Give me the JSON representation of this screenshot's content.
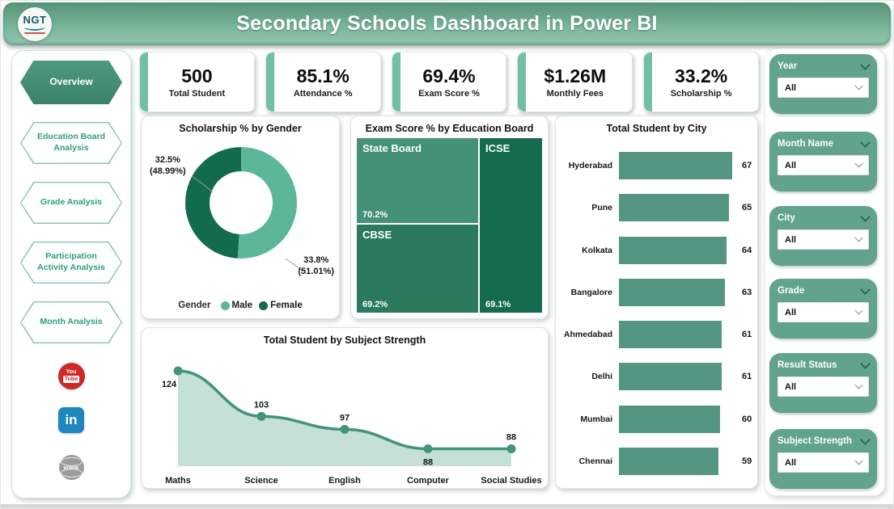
{
  "header": {
    "logo_text": "NGT",
    "title": "Secondary Schools Dashboard in Power BI"
  },
  "sidebar": {
    "items": [
      {
        "label": "Overview",
        "active": true
      },
      {
        "label": "Education Board Analysis",
        "active": false
      },
      {
        "label": "Grade Analysis",
        "active": false
      },
      {
        "label": "Participation Activity Analysis",
        "active": false
      },
      {
        "label": "Month Analysis",
        "active": false
      }
    ],
    "social": [
      {
        "name": "youtube",
        "line1": "You",
        "line2": "Tube",
        "color": "#CD2A26"
      },
      {
        "name": "linkedin",
        "label": "in",
        "color": "#1F86C0"
      },
      {
        "name": "website",
        "label": "www",
        "color": "#9B9B9B"
      }
    ]
  },
  "kpis": [
    {
      "value": "500",
      "label": "Total Student"
    },
    {
      "value": "85.1%",
      "label": "Attendance %"
    },
    {
      "value": "69.4%",
      "label": "Exam Score %"
    },
    {
      "value": "$1.26M",
      "label": "Monthly Fees"
    },
    {
      "value": "33.2%",
      "label": "Scholarship %"
    }
  ],
  "filters": [
    {
      "title": "Year",
      "value": "All"
    },
    {
      "title": "Month Name",
      "value": "All"
    },
    {
      "title": "City",
      "value": "All"
    },
    {
      "title": "Grade",
      "value": "All"
    },
    {
      "title": "Result Status",
      "value": "All"
    },
    {
      "title": "Subject Strength",
      "value": "All"
    }
  ],
  "chart_data": [
    {
      "type": "pie",
      "subtype": "donut",
      "title": "Scholarship % by Gender",
      "legend_title": "Gender",
      "legend_position": "bottom",
      "series": [
        {
          "name": "Male",
          "value_label": "33.8%",
          "share_label": "(51.01%)",
          "share_pct": 51.01,
          "color": "#5BB796"
        },
        {
          "name": "Female",
          "value_label": "32.5%",
          "share_label": "(48.99%)",
          "share_pct": 48.99,
          "color": "#126C4C"
        }
      ]
    },
    {
      "type": "heatmap",
      "subtype": "treemap",
      "title": "Exam Score % by Education Board",
      "cells": [
        {
          "name": "State Board",
          "value": "70.2%",
          "color": "#449177"
        },
        {
          "name": "CBSE",
          "value": "69.2%",
          "color": "#2A7A5B"
        },
        {
          "name": "ICSE",
          "value": "69.1%",
          "color": "#156C4D"
        }
      ]
    },
    {
      "type": "bar",
      "orientation": "horizontal",
      "title": "Total Student by City",
      "categories": [
        "Hyderabad",
        "Pune",
        "Kolkata",
        "Bangalore",
        "Ahmedabad",
        "Delhi",
        "Mumbai",
        "Chennai"
      ],
      "values": [
        67,
        65,
        64,
        63,
        61,
        61,
        60,
        59
      ],
      "xlim": [
        0,
        70
      ],
      "bar_color": "#559682",
      "grid": false
    },
    {
      "type": "area",
      "title": "Total Student by Subject Strength",
      "categories": [
        "Maths",
        "Science",
        "English",
        "Computer",
        "Social Studies"
      ],
      "values": [
        124,
        103,
        97,
        88,
        88
      ],
      "label_positions": [
        "below",
        "above",
        "above",
        "below",
        "above"
      ],
      "line_color": "#41947A",
      "fill_color": "#BFDDD0",
      "ylim": [
        80,
        130
      ],
      "grid": false
    }
  ],
  "colors": {
    "header_green_top": "#589478",
    "header_green_bottom": "#93C6AF",
    "filter_card_green": "#61A38C",
    "kpi_accent_green": "#72C0A4",
    "nav_active_green": "#3F8E71",
    "nav_text_green": "#2F9E74"
  }
}
